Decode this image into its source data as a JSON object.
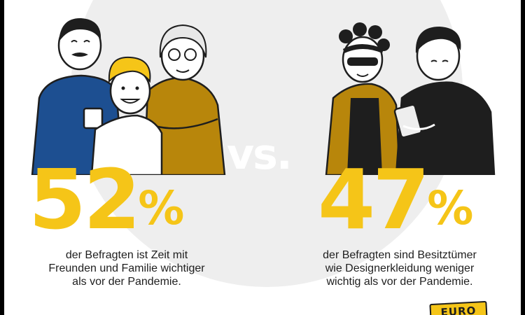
{
  "separator": "vs.",
  "left": {
    "value": "52",
    "unit": "%",
    "caption": [
      "der Befragten ist Zeit mit",
      "Freunden und Familie wichtiger",
      "als vor der Pandemie."
    ]
  },
  "right": {
    "value": "47",
    "unit": "%",
    "caption": [
      "der Befragten sind Besitztümer",
      "wie Designerkleidung weniger",
      "wichtig als vor der Pandemie."
    ]
  },
  "logo": {
    "text": "EURO"
  },
  "colors": {
    "accent": "#f5c518",
    "blue": "#1d4f91",
    "mustard": "#b8860b",
    "ink": "#1e1e1e"
  }
}
